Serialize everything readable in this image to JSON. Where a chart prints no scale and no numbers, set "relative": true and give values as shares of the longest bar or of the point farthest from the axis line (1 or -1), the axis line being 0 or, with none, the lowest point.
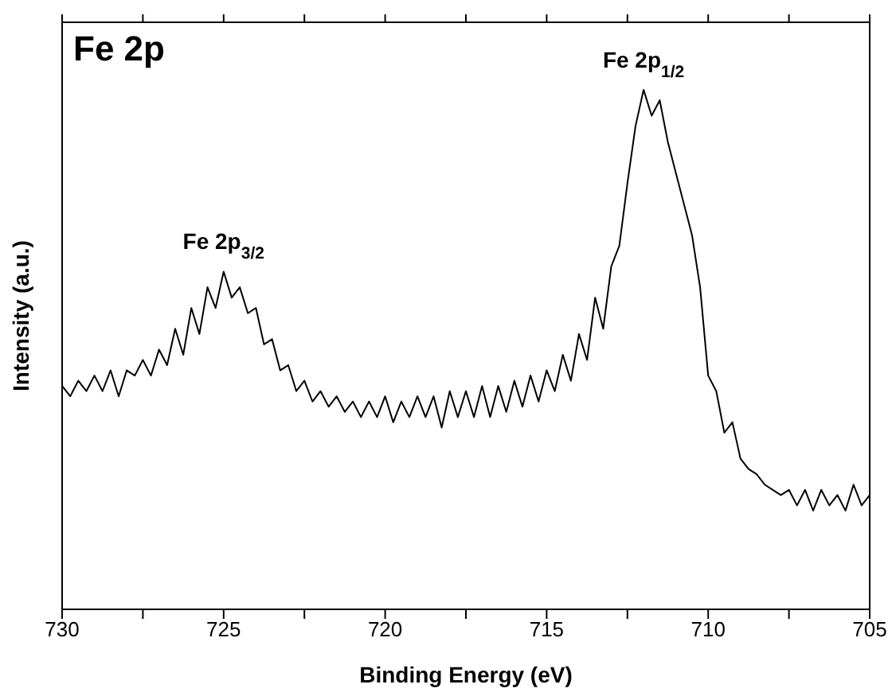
{
  "chart_data": {
    "type": "line",
    "title": "Fe 2p",
    "xlabel": "Binding Energy (eV)",
    "ylabel": "Intensity (a.u.)",
    "relative": true,
    "xlim": [
      730,
      705
    ],
    "xticks": [
      730,
      {
        "value": 727.5,
        "label": null
      },
      725,
      {
        "value": 722.5,
        "label": null
      },
      720,
      {
        "value": 717.5,
        "label": null
      },
      715,
      {
        "value": 712.5,
        "label": null
      },
      710,
      {
        "value": 707.5,
        "label": null
      },
      705
    ],
    "tick_labels": "x",
    "marker": "none",
    "line_style": "solid",
    "annotations": [
      {
        "text": "Fe 2p$_{3/2}$",
        "x": 725,
        "y": 0.65
      },
      {
        "text": "Fe 2p$_{1/2}$",
        "x": 712,
        "y": 1.0
      }
    ],
    "x": [
      730,
      729.75,
      729.5,
      729.25,
      729,
      728.75,
      728.5,
      728.25,
      728,
      727.75,
      727.5,
      727.25,
      727,
      726.75,
      726.5,
      726.25,
      726,
      725.75,
      725.5,
      725.25,
      725,
      724.75,
      724.5,
      724.25,
      724,
      723.75,
      723.5,
      723.25,
      723,
      722.75,
      722.5,
      722.25,
      722,
      721.75,
      721.5,
      721.25,
      721,
      720.75,
      720.5,
      720.25,
      720,
      719.75,
      719.5,
      719.25,
      719,
      718.75,
      718.5,
      718.25,
      718,
      717.75,
      717.5,
      717.25,
      717,
      716.75,
      716.5,
      716.25,
      716,
      715.75,
      715.5,
      715.25,
      715,
      714.75,
      714.5,
      714.25,
      714,
      713.75,
      713.5,
      713.25,
      713,
      712.75,
      712.5,
      712.25,
      712,
      711.75,
      711.5,
      711.25,
      711,
      710.75,
      710.5,
      710.25,
      710,
      709.75,
      709.5,
      709.25,
      709,
      708.75,
      708.5,
      708.25,
      708,
      707.75,
      707.5,
      707.25,
      707,
      706.75,
      706.5,
      706.25,
      706,
      705.75,
      705.5,
      705.25,
      705
    ],
    "series": [
      {
        "color": "#000000",
        "values": [
          0.43,
          0.41,
          0.44,
          0.42,
          0.45,
          0.42,
          0.46,
          0.41,
          0.46,
          0.45,
          0.48,
          0.45,
          0.5,
          0.47,
          0.54,
          0.49,
          0.58,
          0.53,
          0.62,
          0.58,
          0.65,
          0.6,
          0.62,
          0.57,
          0.58,
          0.51,
          0.52,
          0.46,
          0.47,
          0.42,
          0.44,
          0.4,
          0.42,
          0.39,
          0.41,
          0.38,
          0.4,
          0.37,
          0.4,
          0.37,
          0.41,
          0.36,
          0.4,
          0.37,
          0.41,
          0.37,
          0.41,
          0.35,
          0.42,
          0.37,
          0.42,
          0.37,
          0.43,
          0.37,
          0.43,
          0.38,
          0.44,
          0.39,
          0.45,
          0.4,
          0.46,
          0.42,
          0.49,
          0.44,
          0.53,
          0.48,
          0.6,
          0.54,
          0.66,
          0.7,
          0.82,
          0.93,
          1.0,
          0.95,
          0.98,
          0.9,
          0.84,
          0.78,
          0.72,
          0.62,
          0.45,
          0.42,
          0.34,
          0.36,
          0.29,
          0.27,
          0.26,
          0.24,
          0.23,
          0.22,
          0.23,
          0.2,
          0.23,
          0.19,
          0.23,
          0.2,
          0.22,
          0.19,
          0.24,
          0.2,
          0.22
        ]
      }
    ]
  }
}
